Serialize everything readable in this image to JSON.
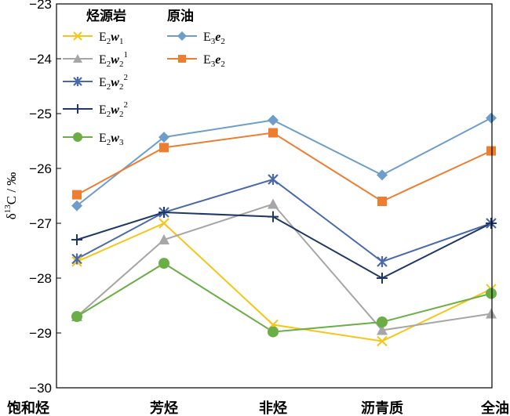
{
  "chart_data": {
    "type": "line",
    "ylabel": "δ13C / ‰",
    "ylim": [
      -30,
      -23
    ],
    "yticks": [
      -23,
      -24,
      -25,
      -26,
      -27,
      -28,
      -29,
      -30
    ],
    "categories": [
      "饱和烃",
      "芳烃",
      "非烃",
      "沥青质",
      "全油"
    ],
    "legend_groups": [
      "烃源岩",
      "原油"
    ],
    "series": [
      {
        "name": "E2w1",
        "group": "烃源岩",
        "color": "#f5c518",
        "marker": "x",
        "values": [
          -27.7,
          -27.0,
          -28.85,
          -29.15,
          -28.2
        ]
      },
      {
        "name": "E2w2 1",
        "group": "烃源岩",
        "color": "#a6a6a6",
        "marker": "triangle",
        "values": [
          -28.7,
          -27.3,
          -26.65,
          -28.95,
          -28.65
        ]
      },
      {
        "name": "E2w2 2",
        "group": "烃源岩",
        "color": "#4a69ac",
        "marker": "star",
        "values": [
          -27.65,
          -26.8,
          -26.2,
          -27.7,
          -27.0
        ]
      },
      {
        "name": "E2w2 2",
        "group": "烃源岩",
        "color": "#203864",
        "marker": "plus",
        "values": [
          -27.3,
          -26.8,
          -26.88,
          -28.0,
          -27.0
        ]
      },
      {
        "name": "E2w3",
        "group": "烃源岩",
        "color": "#6aae45",
        "marker": "circle",
        "values": [
          -28.7,
          -27.73,
          -28.98,
          -28.8,
          -28.28
        ]
      },
      {
        "name": "E3e2",
        "group": "原油",
        "color": "#6d9dcb",
        "marker": "diamond",
        "values": [
          -26.68,
          -25.43,
          -25.12,
          -26.12,
          -25.08
        ]
      },
      {
        "name": "E3e2",
        "group": "原油",
        "color": "#ed7d31",
        "marker": "square",
        "values": [
          -26.48,
          -25.62,
          -25.35,
          -26.6,
          -25.68
        ]
      }
    ],
    "legend": {
      "left": [
        {
          "base": "E",
          "sub1": "2",
          "it": "w",
          "sub2": "1",
          "sup": ""
        },
        {
          "base": "E",
          "sub1": "2",
          "it": "w",
          "sub2": "2",
          "sup": "1"
        },
        {
          "base": "E",
          "sub1": "2",
          "it": "w",
          "sub2": "2",
          "sup": "2"
        },
        {
          "base": "E",
          "sub1": "2",
          "it": "w",
          "sub2": "2",
          "sup": "2"
        },
        {
          "base": "E",
          "sub1": "2",
          "it": "w",
          "sub2": "3",
          "sup": ""
        }
      ],
      "right": [
        {
          "base": "E",
          "sub1": "3",
          "it": "e",
          "sub2": "2",
          "sup": ""
        },
        {
          "base": "E",
          "sub1": "3",
          "it": "e",
          "sub2": "2",
          "sup": ""
        }
      ]
    }
  }
}
